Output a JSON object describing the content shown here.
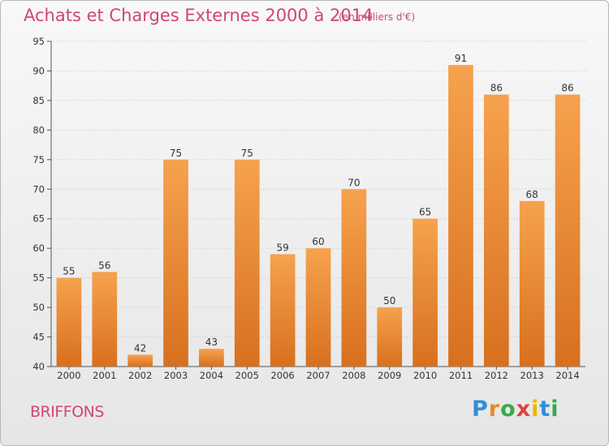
{
  "header": {
    "title": "Achats et Charges Externes 2000 à 2014",
    "unit": "(en milliers d'€)"
  },
  "footer": {
    "commune": "BRIFFONS",
    "logo": [
      "P",
      "r",
      "o",
      "x",
      "i",
      "t",
      "i"
    ]
  },
  "colors": {
    "title": "#d0457a",
    "bar_light": "#f6a24e",
    "bar_dark": "#d8701e"
  },
  "chart_data": {
    "type": "bar",
    "title": "Achats et Charges Externes 2000 à 2014",
    "categories": [
      "2000",
      "2001",
      "2002",
      "2003",
      "2004",
      "2005",
      "2006",
      "2007",
      "2008",
      "2009",
      "2010",
      "2011",
      "2012",
      "2013",
      "2014"
    ],
    "values": [
      55,
      56,
      42,
      75,
      43,
      75,
      59,
      60,
      70,
      50,
      65,
      91,
      86,
      68,
      86
    ],
    "ylim": [
      40,
      95
    ],
    "yticks": [
      40,
      45,
      50,
      55,
      60,
      65,
      70,
      75,
      80,
      85,
      90,
      95
    ],
    "grid": true,
    "xlabel": "",
    "ylabel": ""
  }
}
